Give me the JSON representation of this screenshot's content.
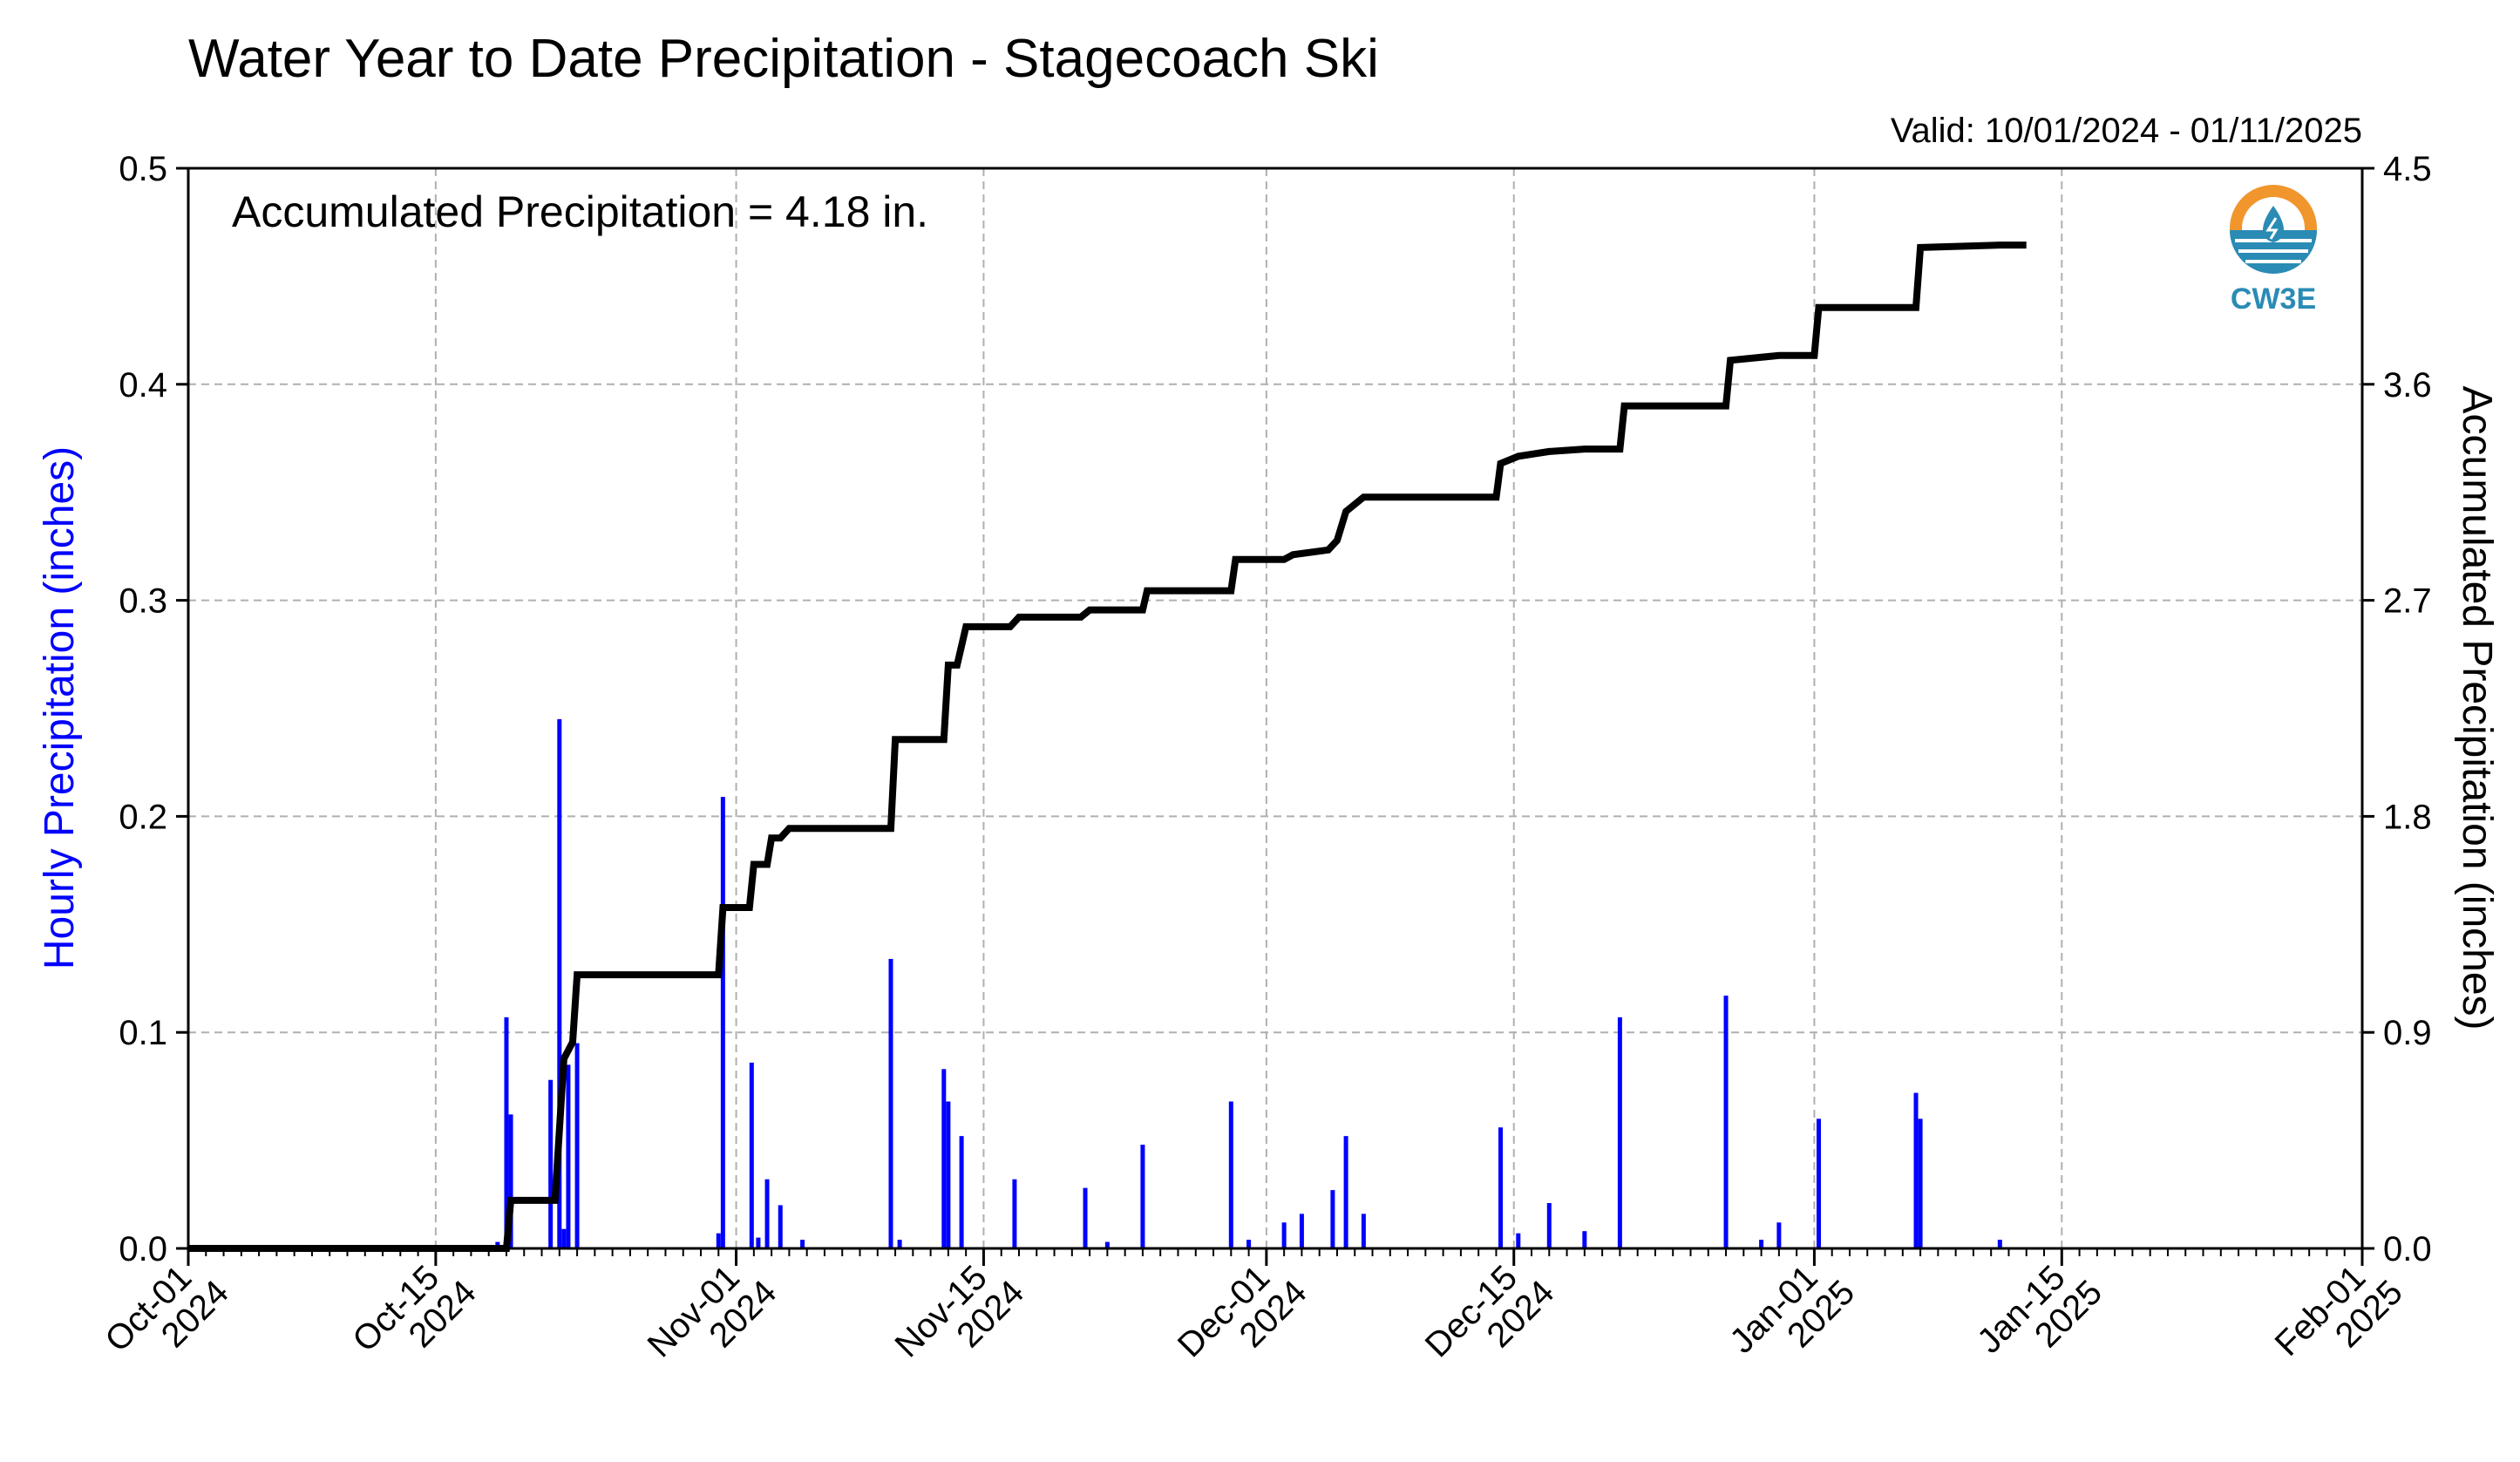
{
  "header": {
    "title": "Water Year to Date Precipitation - Stagecoach Ski",
    "valid": "Valid: 10/01/2024 - 01/11/2025",
    "annotation": "Accumulated Precipitation = 4.18 in."
  },
  "logo": {
    "text": "CW3E",
    "icon": "water-drop-logo-icon"
  },
  "colors": {
    "bars": "#0000ff",
    "line": "#000000",
    "grid": "#b0b0b0",
    "left_label": "#0000ff",
    "logo_orange": "#f0962d",
    "logo_blue": "#2a8bb5"
  },
  "chart_data": {
    "type": "bar+line",
    "title": "Water Year to Date Precipitation - Stagecoach Ski",
    "xlabel": "",
    "ylabel_left": "Hourly Precipitation (inches)",
    "ylabel_right": "Accumulated Precipitation (inches)",
    "xlim": [
      "2024-10-01",
      "2025-02-01"
    ],
    "ylim_left": [
      0,
      0.5
    ],
    "ylim_right": [
      0,
      4.5
    ],
    "yticks_left": [
      "0.0",
      "0.1",
      "0.2",
      "0.3",
      "0.4",
      "0.5"
    ],
    "yticks_right": [
      "0.0",
      "0.9",
      "1.8",
      "2.7",
      "3.6",
      "4.5"
    ],
    "xticks": [
      {
        "date": "2024-10-01",
        "line1": "Oct-01",
        "line2": "2024"
      },
      {
        "date": "2024-10-15",
        "line1": "Oct-15",
        "line2": "2024"
      },
      {
        "date": "2024-11-01",
        "line1": "Nov-01",
        "line2": "2024"
      },
      {
        "date": "2024-11-15",
        "line1": "Nov-15",
        "line2": "2024"
      },
      {
        "date": "2024-12-01",
        "line1": "Dec-01",
        "line2": "2024"
      },
      {
        "date": "2024-12-15",
        "line1": "Dec-15",
        "line2": "2024"
      },
      {
        "date": "2025-01-01",
        "line1": "Jan-01",
        "line2": "2025"
      },
      {
        "date": "2025-01-15",
        "line1": "Jan-15",
        "line2": "2025"
      },
      {
        "date": "2025-02-01",
        "line1": "Feb-01",
        "line2": "2025"
      }
    ],
    "grid": true,
    "series": [
      {
        "name": "Hourly Precipitation",
        "type": "bar",
        "points": [
          [
            "2024-10-18T12:00",
            0.003
          ],
          [
            "2024-10-19T00:00",
            0.107
          ],
          [
            "2024-10-19T06:00",
            0.062
          ],
          [
            "2024-10-21T12:00",
            0.078
          ],
          [
            "2024-10-22T00:00",
            0.245
          ],
          [
            "2024-10-22T06:00",
            0.009
          ],
          [
            "2024-10-22T12:00",
            0.085
          ],
          [
            "2024-10-23T00:00",
            0.095
          ],
          [
            "2024-10-31T00:00",
            0.007
          ],
          [
            "2024-10-31T06:00",
            0.209
          ],
          [
            "2024-11-01T21:00",
            0.086
          ],
          [
            "2024-11-02T06:00",
            0.005
          ],
          [
            "2024-11-02T18:00",
            0.032
          ],
          [
            "2024-11-03T12:00",
            0.02
          ],
          [
            "2024-11-04T18:00",
            0.004
          ],
          [
            "2024-11-09T18:00",
            0.134
          ],
          [
            "2024-11-10T06:00",
            0.004
          ],
          [
            "2024-11-12T18:00",
            0.083
          ],
          [
            "2024-11-13T00:00",
            0.068
          ],
          [
            "2024-11-13T18:00",
            0.052
          ],
          [
            "2024-11-16T18:00",
            0.032
          ],
          [
            "2024-11-20T18:00",
            0.028
          ],
          [
            "2024-11-22T00:00",
            0.003
          ],
          [
            "2024-11-24T00:00",
            0.048
          ],
          [
            "2024-11-29T00:00",
            0.068
          ],
          [
            "2024-11-30T00:00",
            0.004
          ],
          [
            "2024-12-02T00:00",
            0.012
          ],
          [
            "2024-12-03T00:00",
            0.016
          ],
          [
            "2024-12-04T18:00",
            0.027
          ],
          [
            "2024-12-05T12:00",
            0.052
          ],
          [
            "2024-12-06T12:00",
            0.016
          ],
          [
            "2024-12-14T06:00",
            0.056
          ],
          [
            "2024-12-15T06:00",
            0.007
          ],
          [
            "2024-12-17T00:00",
            0.021
          ],
          [
            "2024-12-19T00:00",
            0.008
          ],
          [
            "2024-12-21T00:00",
            0.107
          ],
          [
            "2024-12-27T00:00",
            0.117
          ],
          [
            "2024-12-29T00:00",
            0.004
          ],
          [
            "2024-12-30T00:00",
            0.012
          ],
          [
            "2025-01-01T06:00",
            0.06
          ],
          [
            "2025-01-06T18:00",
            0.072
          ],
          [
            "2025-01-07T00:00",
            0.06
          ],
          [
            "2025-01-11T12:00",
            0.004
          ]
        ]
      },
      {
        "name": "Accumulated Precipitation",
        "type": "line-step",
        "points": [
          [
            "2024-10-01T00:00",
            0.0
          ],
          [
            "2024-10-19T00:00",
            0.0
          ],
          [
            "2024-10-19T06:00",
            0.2
          ],
          [
            "2024-10-21T18:00",
            0.2
          ],
          [
            "2024-10-22T06:00",
            0.79
          ],
          [
            "2024-10-22T18:00",
            0.86
          ],
          [
            "2024-10-23T00:00",
            1.14
          ],
          [
            "2024-10-31T00:00",
            1.14
          ],
          [
            "2024-10-31T06:00",
            1.42
          ],
          [
            "2024-11-01T18:00",
            1.42
          ],
          [
            "2024-11-02T00:00",
            1.6
          ],
          [
            "2024-11-02T18:00",
            1.6
          ],
          [
            "2024-11-03T00:00",
            1.71
          ],
          [
            "2024-11-03T12:00",
            1.71
          ],
          [
            "2024-11-04T00:00",
            1.75
          ],
          [
            "2024-11-09T18:00",
            1.75
          ],
          [
            "2024-11-10T00:00",
            2.12
          ],
          [
            "2024-11-12T18:00",
            2.12
          ],
          [
            "2024-11-13T00:00",
            2.43
          ],
          [
            "2024-11-13T12:00",
            2.43
          ],
          [
            "2024-11-14T00:00",
            2.59
          ],
          [
            "2024-11-16T12:00",
            2.59
          ],
          [
            "2024-11-17T00:00",
            2.63
          ],
          [
            "2024-11-20T12:00",
            2.63
          ],
          [
            "2024-11-21T00:00",
            2.66
          ],
          [
            "2024-11-24T00:00",
            2.66
          ],
          [
            "2024-11-24T06:00",
            2.74
          ],
          [
            "2024-11-29T00:00",
            2.74
          ],
          [
            "2024-11-29T06:00",
            2.87
          ],
          [
            "2024-12-02T00:00",
            2.87
          ],
          [
            "2024-12-02T12:00",
            2.89
          ],
          [
            "2024-12-04T12:00",
            2.91
          ],
          [
            "2024-12-05T00:00",
            2.95
          ],
          [
            "2024-12-05T12:00",
            3.07
          ],
          [
            "2024-12-06T12:00",
            3.13
          ],
          [
            "2024-12-14T00:00",
            3.13
          ],
          [
            "2024-12-14T06:00",
            3.27
          ],
          [
            "2024-12-15T06:00",
            3.3
          ],
          [
            "2024-12-17T00:00",
            3.32
          ],
          [
            "2024-12-19T00:00",
            3.33
          ],
          [
            "2024-12-21T00:00",
            3.33
          ],
          [
            "2024-12-21T06:00",
            3.51
          ],
          [
            "2024-12-27T00:00",
            3.51
          ],
          [
            "2024-12-27T06:00",
            3.7
          ],
          [
            "2024-12-30T00:00",
            3.72
          ],
          [
            "2025-01-01T00:00",
            3.72
          ],
          [
            "2025-01-01T06:00",
            3.92
          ],
          [
            "2025-01-06T18:00",
            3.92
          ],
          [
            "2025-01-07T00:00",
            4.17
          ],
          [
            "2025-01-11T12:00",
            4.18
          ],
          [
            "2025-01-13T00:00",
            4.18
          ]
        ]
      }
    ]
  }
}
